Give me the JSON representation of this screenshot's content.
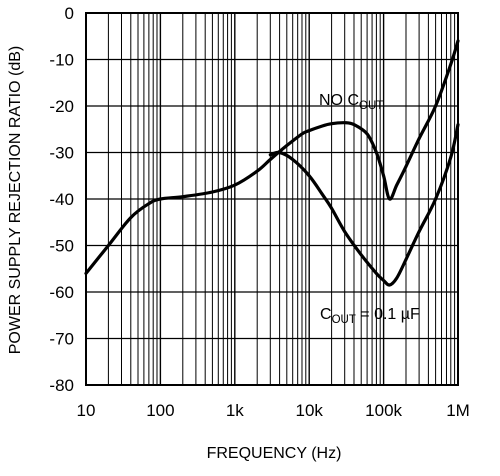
{
  "chart_data": {
    "type": "line",
    "xlabel": "FREQUENCY (Hz)",
    "ylabel": "POWER SUPPLY REJECTION RATIO (dB)",
    "x_scale": "log",
    "xlim": [
      10,
      1000000
    ],
    "ylim": [
      -80,
      0
    ],
    "grid": true,
    "x_tick_labels": [
      "10",
      "100",
      "1k",
      "10k",
      "100k",
      "1M"
    ],
    "x_tick_values": [
      10,
      100,
      1000,
      10000,
      100000,
      1000000
    ],
    "y_tick_labels": [
      "0",
      "-10",
      "-20",
      "-30",
      "-40",
      "-50",
      "-60",
      "-70",
      "-80"
    ],
    "y_tick_values": [
      0,
      -10,
      -20,
      -30,
      -40,
      -50,
      -60,
      -70,
      -80
    ],
    "series": [
      {
        "name": "NO C_OUT",
        "label_main_1": "NO C",
        "label_sub_1": "OUT",
        "x": [
          10,
          20,
          40,
          70,
          100,
          200,
          500,
          1000,
          2000,
          3000,
          5000,
          8000,
          10000,
          15000,
          20000,
          30000,
          40000,
          60000,
          80000,
          100000,
          120000,
          150000,
          200000,
          300000,
          500000,
          800000,
          1000000
        ],
        "y": [
          -56,
          -50,
          -44,
          -41,
          -40,
          -39.5,
          -38.5,
          -37,
          -34,
          -31.5,
          -28.5,
          -26,
          -25.3,
          -24.3,
          -23.8,
          -23.6,
          -24,
          -26,
          -30,
          -35,
          -40,
          -37,
          -33,
          -27,
          -20,
          -11,
          -6
        ]
      },
      {
        "name": "C_OUT = 0.1 µF",
        "label_main_1": "C",
        "label_sub_1": "OUT",
        "label_main_2": " = 0.1 µF",
        "x": [
          3000,
          4000,
          6000,
          10000,
          15000,
          20000,
          30000,
          50000,
          80000,
          100000,
          120000,
          150000,
          200000,
          300000,
          500000,
          800000,
          1000000
        ],
        "y": [
          -30.5,
          -30,
          -31.5,
          -35,
          -39,
          -42,
          -47,
          -52,
          -56,
          -57.5,
          -58.5,
          -57,
          -53,
          -47,
          -40,
          -31,
          -24
        ]
      }
    ]
  }
}
